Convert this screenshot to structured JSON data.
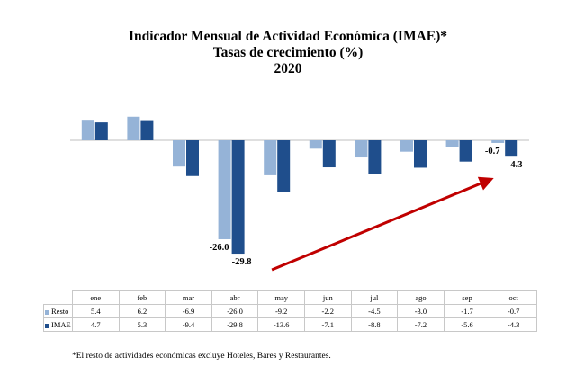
{
  "title_lines": [
    "Indicador Mensual de Actividad Económica (IMAE)*",
    "Tasas de crecimiento (%)",
    "2020"
  ],
  "colors": {
    "resto": "#95b3d7",
    "imae": "#1f4e8c",
    "arrow": "#c00000"
  },
  "chart_data": {
    "type": "bar",
    "categories": [
      "ene",
      "feb",
      "mar",
      "abr",
      "may",
      "jun",
      "jul",
      "ago",
      "sep",
      "oct"
    ],
    "series": [
      {
        "name": "Resto",
        "values": [
          5.4,
          6.2,
          -6.9,
          -26.0,
          -9.2,
          -2.2,
          -4.5,
          -3.0,
          -1.7,
          -0.7
        ]
      },
      {
        "name": "IMAE",
        "values": [
          4.7,
          5.3,
          -9.4,
          -29.8,
          -13.6,
          -7.1,
          -8.8,
          -7.2,
          -5.6,
          -4.3
        ]
      }
    ],
    "data_labels": [
      {
        "series": "Resto",
        "category": "abr",
        "text": "-26.0"
      },
      {
        "series": "IMAE",
        "category": "abr",
        "text": "-29.8"
      },
      {
        "series": "Resto",
        "category": "oct",
        "text": "-0.7"
      },
      {
        "series": "IMAE",
        "category": "oct",
        "text": "-4.3"
      }
    ],
    "annotation": "red arrow rising from abr to oct",
    "data_table": true,
    "grid": false
  },
  "footnote": "*El resto de actividades económicas excluye Hoteles, Bares y Restaurantes."
}
